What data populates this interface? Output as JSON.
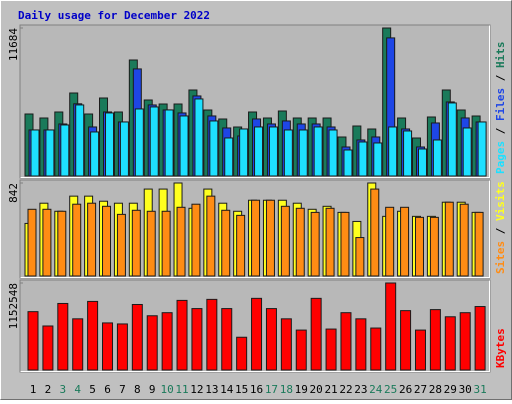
{
  "title": "Daily usage for December 2022",
  "chart_data": [
    {
      "type": "bar",
      "ylim": [
        0,
        11684
      ],
      "yticks": [
        11684
      ],
      "legend_separator": "/",
      "series": [
        {
          "name": "Hits",
          "color": "#1a7a5a",
          "values": [
            4895,
            4579,
            5053,
            6553,
            4895,
            6158,
            5053,
            9158,
            6000,
            5684,
            5684,
            6790,
            5211,
            4500,
            3868,
            5053,
            4579,
            5132,
            4579,
            4579,
            4579,
            3079,
            3947,
            3711,
            11684,
            4579,
            3000,
            4658,
            6790,
            5211,
            4737
          ]
        },
        {
          "name": "Files",
          "color": "#1e46e6",
          "values": [
            3634,
            3634,
            4108,
            5700,
            3871,
            5056,
            4266,
            8453,
            5609,
            5214,
            4977,
            6320,
            4740,
            3792,
            3160,
            4503,
            4108,
            4345,
            4108,
            4108,
            3871,
            2291,
            2844,
            3081,
            10902,
            3713,
            2291,
            4187,
            5846,
            4582,
            4266
          ]
        },
        {
          "name": "Pages",
          "color": "#1ee0ff",
          "values": [
            3634,
            3634,
            4029,
            5609,
            3476,
            4977,
            4266,
            5293,
            5451,
            5214,
            4740,
            6083,
            4345,
            3002,
            3713,
            3871,
            3871,
            3634,
            3634,
            3871,
            3634,
            2054,
            2686,
            2607,
            3871,
            3555,
            2133,
            2844,
            5767,
            3792,
            4266
          ]
        }
      ]
    },
    {
      "type": "bar",
      "ylim": [
        0,
        842
      ],
      "yticks": [
        842
      ],
      "legend_separator": "/",
      "series": [
        {
          "name": "Visits",
          "color": "#ffff1e",
          "values": [
            476,
            659,
            586,
            723,
            723,
            677,
            659,
            659,
            787,
            787,
            842,
            613,
            787,
            659,
            586,
            686,
            686,
            686,
            659,
            604,
            631,
            576,
            494,
            842,
            540,
            586,
            540,
            540,
            668,
            668,
            576
          ]
        },
        {
          "name": "Sites",
          "color": "#ff8c14",
          "values": [
            604,
            604,
            586,
            650,
            659,
            631,
            558,
            595,
            586,
            586,
            622,
            650,
            723,
            595,
            549,
            686,
            686,
            631,
            613,
            576,
            613,
            576,
            348,
            787,
            622,
            622,
            531,
            531,
            668,
            650,
            576
          ]
        }
      ]
    },
    {
      "type": "bar",
      "ylim": [
        0,
        1152548
      ],
      "yticks": [
        1152548
      ],
      "categories": [
        "1",
        "2",
        "3",
        "4",
        "5",
        "6",
        "7",
        "8",
        "9",
        "10",
        "11",
        "12",
        "13",
        "14",
        "15",
        "16",
        "17",
        "18",
        "19",
        "20",
        "21",
        "22",
        "23",
        "24",
        "25",
        "26",
        "27",
        "28",
        "29",
        "30",
        "31"
      ],
      "category_colors": [
        "#000000",
        "#000000",
        "#1a7a5a",
        "#1a7a5a",
        "#000000",
        "#000000",
        "#000000",
        "#000000",
        "#000000",
        "#1a7a5a",
        "#1a7a5a",
        "#000000",
        "#000000",
        "#000000",
        "#000000",
        "#000000",
        "#1a7a5a",
        "#1a7a5a",
        "#000000",
        "#000000",
        "#000000",
        "#000000",
        "#000000",
        "#1a7a5a",
        "#1a7a5a",
        "#000000",
        "#000000",
        "#000000",
        "#000000",
        "#000000",
        "#1a7a5a"
      ],
      "series": [
        {
          "name": "KBytes",
          "color": "#ff0000",
          "values": [
            772920,
            583080,
            881400,
            678000,
            908520,
            623760,
            610200,
            867840,
            718680,
            759360,
            922080,
            813600,
            935640,
            813600,
            433920,
            949200,
            813600,
            678000,
            528840,
            949200,
            542400,
            759360,
            678000,
            555960,
            1152548,
            786480,
            528840,
            800040,
            705120,
            759360,
            840720
          ]
        }
      ]
    }
  ]
}
